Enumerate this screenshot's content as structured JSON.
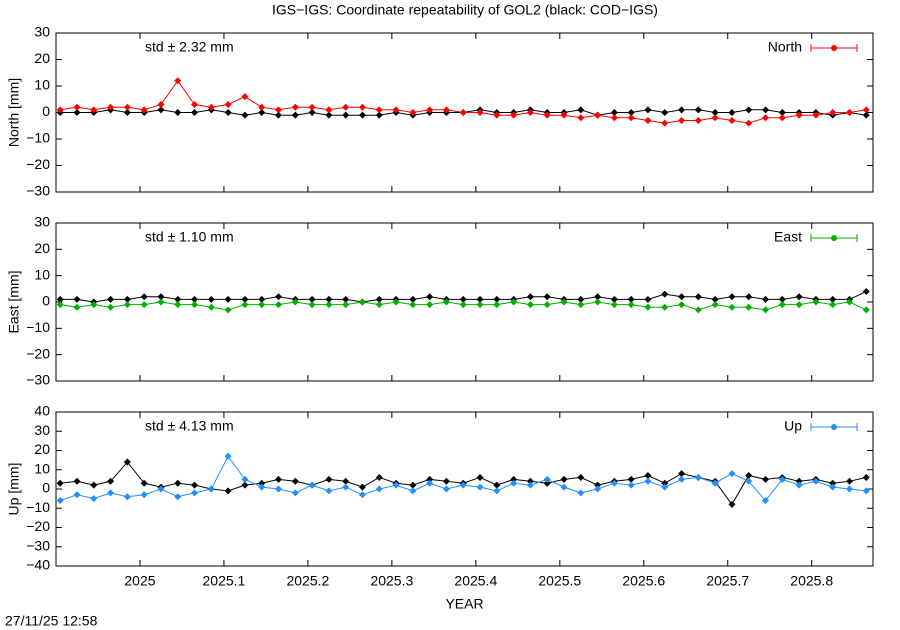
{
  "page_title": "IGS−IGS: Coordinate repeatability of GOL2 (black: COD−IGS)",
  "timestamp": "27/11/25 12:58",
  "chart_data": [
    {
      "type": "line",
      "ylabel": "North [mm]",
      "annotation": "std ± 2.32 mm",
      "annotation_color": "#ff0000",
      "xlim": [
        2024.9,
        2025.873
      ],
      "ylim": [
        -30,
        30
      ],
      "yticks": [
        {
          "value": -30,
          "label": "−30"
        },
        {
          "value": -20,
          "label": "−20"
        },
        {
          "value": -10,
          "label": "−10"
        },
        0,
        10,
        20,
        30
      ],
      "x": [
        2024.905,
        2024.925,
        2024.945,
        2024.965,
        2024.985,
        2025.005,
        2025.025,
        2025.045,
        2025.065,
        2025.085,
        2025.105,
        2025.125,
        2025.145,
        2025.165,
        2025.185,
        2025.205,
        2025.225,
        2025.245,
        2025.265,
        2025.285,
        2025.305,
        2025.325,
        2025.345,
        2025.365,
        2025.385,
        2025.405,
        2025.425,
        2025.445,
        2025.465,
        2025.485,
        2025.505,
        2025.525,
        2025.545,
        2025.565,
        2025.585,
        2025.605,
        2025.625,
        2025.645,
        2025.665,
        2025.685,
        2025.705,
        2025.725,
        2025.745,
        2025.765,
        2025.785,
        2025.805,
        2025.825,
        2025.845,
        2025.865
      ],
      "series": [
        {
          "color": "#000000",
          "values": [
            0,
            0,
            0,
            1,
            0,
            0,
            1,
            0,
            0,
            1,
            0,
            -1,
            0,
            -1,
            -1,
            0,
            -1,
            -1,
            -1,
            -1,
            0,
            -1,
            0,
            0,
            0,
            1,
            0,
            0,
            1,
            0,
            0,
            1,
            -1,
            0,
            0,
            1,
            0,
            1,
            1,
            0,
            0,
            1,
            1,
            0,
            0,
            0,
            -1,
            0,
            -1
          ]
        },
        {
          "name": "North",
          "color": "#ff0000",
          "values": [
            1,
            2,
            1,
            2,
            2,
            1,
            3,
            12,
            3,
            2,
            3,
            6,
            2,
            1,
            2,
            2,
            1,
            2,
            2,
            1,
            1,
            0,
            1,
            1,
            0,
            0,
            -1,
            -1,
            0,
            -1,
            -1,
            -2,
            -1,
            -2,
            -2,
            -3,
            -4,
            -3,
            -3,
            -2,
            -3,
            -4,
            -2,
            -2,
            -1,
            -1,
            0,
            0,
            1
          ]
        }
      ]
    },
    {
      "type": "line",
      "ylabel": "East [mm]",
      "annotation": "std ± 1.10 mm",
      "annotation_color": "#00b000",
      "xlim": [
        2024.9,
        2025.873
      ],
      "ylim": [
        -30,
        30
      ],
      "yticks": [
        {
          "value": -30,
          "label": "−30"
        },
        {
          "value": -20,
          "label": "−20"
        },
        {
          "value": -10,
          "label": "−10"
        },
        0,
        10,
        20,
        30
      ],
      "x": [
        2024.905,
        2024.925,
        2024.945,
        2024.965,
        2024.985,
        2025.005,
        2025.025,
        2025.045,
        2025.065,
        2025.085,
        2025.105,
        2025.125,
        2025.145,
        2025.165,
        2025.185,
        2025.205,
        2025.225,
        2025.245,
        2025.265,
        2025.285,
        2025.305,
        2025.325,
        2025.345,
        2025.365,
        2025.385,
        2025.405,
        2025.425,
        2025.445,
        2025.465,
        2025.485,
        2025.505,
        2025.525,
        2025.545,
        2025.565,
        2025.585,
        2025.605,
        2025.625,
        2025.645,
        2025.665,
        2025.685,
        2025.705,
        2025.725,
        2025.745,
        2025.765,
        2025.785,
        2025.805,
        2025.825,
        2025.845,
        2025.865
      ],
      "series": [
        {
          "color": "#000000",
          "values": [
            1,
            1,
            0,
            1,
            1,
            2,
            2,
            1,
            1,
            1,
            1,
            1,
            1,
            2,
            1,
            1,
            1,
            1,
            0,
            1,
            1,
            1,
            2,
            1,
            1,
            1,
            1,
            1,
            2,
            2,
            1,
            1,
            2,
            1,
            1,
            1,
            3,
            2,
            2,
            1,
            2,
            2,
            1,
            1,
            2,
            1,
            1,
            1,
            4
          ]
        },
        {
          "name": "East",
          "color": "#00b000",
          "values": [
            -1,
            -2,
            -1,
            -2,
            -1,
            -1,
            0,
            -1,
            -1,
            -2,
            -3,
            -1,
            -1,
            -1,
            0,
            -1,
            -1,
            -1,
            0,
            -1,
            0,
            -1,
            -1,
            0,
            -1,
            -1,
            -1,
            0,
            -1,
            -1,
            0,
            -1,
            0,
            -1,
            -1,
            -2,
            -2,
            -1,
            -3,
            -1,
            -2,
            -2,
            -3,
            -1,
            -1,
            0,
            -1,
            0,
            -3
          ]
        }
      ]
    },
    {
      "type": "line",
      "ylabel": "Up [mm]",
      "xlabel": "YEAR",
      "annotation": "std ± 4.13 mm",
      "annotation_color": "#1e90ff",
      "xlim": [
        2024.9,
        2025.873
      ],
      "ylim": [
        -40,
        40
      ],
      "xticks": [
        2025,
        2025.1,
        2025.2,
        2025.3,
        2025.4,
        2025.5,
        2025.6,
        2025.7,
        2025.8
      ],
      "yticks": [
        {
          "value": -40,
          "label": "−40"
        },
        {
          "value": -30,
          "label": "−30"
        },
        {
          "value": -20,
          "label": "−20"
        },
        {
          "value": -10,
          "label": "−10"
        },
        0,
        10,
        20,
        30,
        40
      ],
      "x": [
        2024.905,
        2024.925,
        2024.945,
        2024.965,
        2024.985,
        2025.005,
        2025.025,
        2025.045,
        2025.065,
        2025.085,
        2025.105,
        2025.125,
        2025.145,
        2025.165,
        2025.185,
        2025.205,
        2025.225,
        2025.245,
        2025.265,
        2025.285,
        2025.305,
        2025.325,
        2025.345,
        2025.365,
        2025.385,
        2025.405,
        2025.425,
        2025.445,
        2025.465,
        2025.485,
        2025.505,
        2025.525,
        2025.545,
        2025.565,
        2025.585,
        2025.605,
        2025.625,
        2025.645,
        2025.665,
        2025.685,
        2025.705,
        2025.725,
        2025.745,
        2025.765,
        2025.785,
        2025.805,
        2025.825,
        2025.845,
        2025.865
      ],
      "series": [
        {
          "color": "#000000",
          "values": [
            3,
            4,
            2,
            4,
            14,
            3,
            1,
            3,
            2,
            0,
            -1,
            2,
            3,
            5,
            4,
            2,
            5,
            4,
            1,
            6,
            3,
            2,
            5,
            4,
            3,
            6,
            2,
            5,
            4,
            3,
            5,
            6,
            2,
            4,
            5,
            7,
            3,
            8,
            6,
            4,
            -8,
            7,
            5,
            6,
            4,
            5,
            3,
            4,
            6
          ]
        },
        {
          "name": "Up",
          "color": "#1e90ff",
          "values": [
            -6,
            -3,
            -5,
            -2,
            -4,
            -3,
            0,
            -4,
            -2,
            0,
            17,
            5,
            1,
            0,
            -2,
            2,
            -1,
            1,
            -3,
            0,
            2,
            -1,
            3,
            0,
            2,
            1,
            -1,
            3,
            2,
            5,
            1,
            -2,
            0,
            3,
            2,
            4,
            1,
            5,
            6,
            3,
            8,
            4,
            -6,
            5,
            2,
            4,
            1,
            0,
            -1
          ]
        }
      ]
    }
  ]
}
